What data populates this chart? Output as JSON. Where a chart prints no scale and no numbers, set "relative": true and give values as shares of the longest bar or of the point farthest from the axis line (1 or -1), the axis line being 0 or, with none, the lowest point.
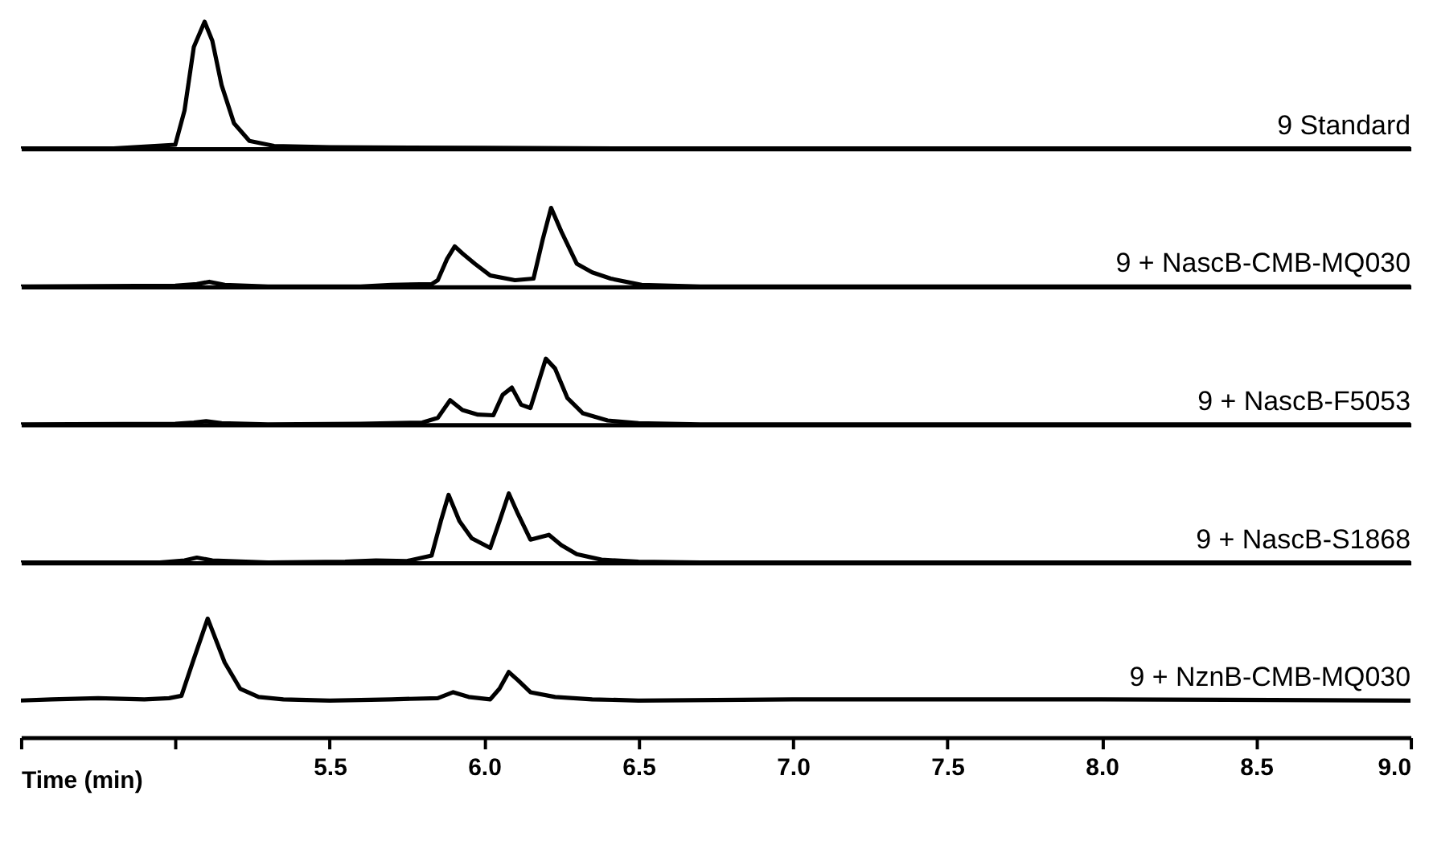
{
  "chart_data": [
    {
      "type": "line",
      "relative": true,
      "xlim": [
        4.5,
        9.0
      ],
      "tick_labels": false,
      "annotations": [
        "9 Standard"
      ],
      "series": [
        {
          "color": "#000000",
          "x": [
            4.5,
            4.8,
            5.0,
            5.03,
            5.06,
            5.095,
            5.12,
            5.15,
            5.19,
            5.24,
            5.32,
            5.5,
            6.0,
            6.5,
            9.0
          ],
          "values": [
            0,
            0,
            0.03,
            0.3,
            0.8,
            1.0,
            0.85,
            0.5,
            0.2,
            0.06,
            0.02,
            0.01,
            0.005,
            0,
            0
          ]
        }
      ]
    },
    {
      "type": "line",
      "relative": true,
      "xlim": [
        4.5,
        9.0
      ],
      "tick_labels": false,
      "annotations": [
        "9 + NascB-CMB-MQ030"
      ],
      "series": [
        {
          "color": "#000000",
          "x": [
            4.5,
            5.0,
            5.07,
            5.11,
            5.16,
            5.3,
            5.6,
            5.7,
            5.83,
            5.85,
            5.88,
            5.905,
            5.93,
            5.97,
            6.02,
            6.1,
            6.16,
            6.19,
            6.217,
            6.25,
            6.3,
            6.35,
            6.41,
            6.51,
            6.7,
            9.0
          ],
          "values": [
            0,
            0.01,
            0.03,
            0.06,
            0.02,
            0,
            0,
            0.02,
            0.03,
            0.08,
            0.35,
            0.51,
            0.42,
            0.29,
            0.14,
            0.08,
            0.1,
            0.6,
            1.0,
            0.7,
            0.29,
            0.18,
            0.1,
            0.02,
            0,
            0
          ]
        }
      ]
    },
    {
      "type": "line",
      "relative": true,
      "xlim": [
        4.5,
        9.0
      ],
      "tick_labels": false,
      "annotations": [
        "9 + NascB-F5053"
      ],
      "series": [
        {
          "color": "#000000",
          "x": [
            4.5,
            5.0,
            5.06,
            5.1,
            5.15,
            5.3,
            5.6,
            5.8,
            5.85,
            5.89,
            5.93,
            5.98,
            6.03,
            6.06,
            6.09,
            6.12,
            6.15,
            6.18,
            6.2,
            6.23,
            6.27,
            6.32,
            6.4,
            6.5,
            6.7,
            9.0
          ],
          "values": [
            0,
            0.01,
            0.03,
            0.05,
            0.02,
            0,
            0.01,
            0.03,
            0.1,
            0.37,
            0.22,
            0.15,
            0.14,
            0.45,
            0.56,
            0.3,
            0.25,
            0.7,
            1.0,
            0.85,
            0.4,
            0.17,
            0.06,
            0.02,
            0,
            0
          ]
        }
      ]
    },
    {
      "type": "line",
      "relative": true,
      "xlim": [
        4.5,
        9.0
      ],
      "tick_labels": false,
      "annotations": [
        "9 + NascB-S1868"
      ],
      "series": [
        {
          "color": "#000000",
          "x": [
            4.5,
            4.95,
            5.03,
            5.07,
            5.12,
            5.3,
            5.55,
            5.65,
            5.75,
            5.83,
            5.86,
            5.885,
            5.92,
            5.96,
            6.02,
            6.05,
            6.08,
            6.11,
            6.15,
            6.21,
            6.25,
            6.3,
            6.38,
            6.5,
            6.7,
            9.0
          ],
          "values": [
            0,
            0,
            0.03,
            0.07,
            0.03,
            0,
            0.01,
            0.03,
            0.02,
            0.1,
            0.6,
            0.98,
            0.6,
            0.35,
            0.21,
            0.6,
            1.0,
            0.7,
            0.33,
            0.4,
            0.25,
            0.12,
            0.04,
            0.01,
            0,
            0
          ]
        }
      ]
    },
    {
      "type": "line",
      "relative": true,
      "xlim": [
        4.5,
        9.0
      ],
      "xticks": [
        {
          "value": 4.5,
          "label": null
        },
        {
          "value": 5.0,
          "label": null
        },
        5.5,
        {
          "value": 6.0,
          "label": "6.0"
        },
        6.5,
        {
          "value": 7.0,
          "label": "7.0"
        },
        7.5,
        {
          "value": 8.0,
          "label": "8.0"
        },
        8.5,
        {
          "value": 9.0,
          "label": "9.0"
        }
      ],
      "xlabel": "Time (min)",
      "tick_labels": "x",
      "annotations": [
        "9 + NznB-CMB-MQ030"
      ],
      "series": [
        {
          "color": "#000000",
          "x": [
            4.5,
            4.6,
            4.75,
            4.9,
            4.98,
            5.02,
            5.06,
            5.105,
            5.16,
            5.21,
            5.27,
            5.35,
            5.5,
            5.7,
            5.85,
            5.9,
            5.95,
            6.02,
            6.05,
            6.08,
            6.11,
            6.15,
            6.23,
            6.35,
            6.5,
            7.0,
            8.0,
            9.0
          ],
          "values": [
            0.31,
            0.32,
            0.33,
            0.32,
            0.33,
            0.35,
            0.66,
            1.0,
            0.63,
            0.41,
            0.34,
            0.32,
            0.31,
            0.32,
            0.33,
            0.38,
            0.34,
            0.32,
            0.41,
            0.55,
            0.48,
            0.38,
            0.34,
            0.32,
            0.31,
            0.32,
            0.32,
            0.31
          ]
        }
      ]
    }
  ]
}
